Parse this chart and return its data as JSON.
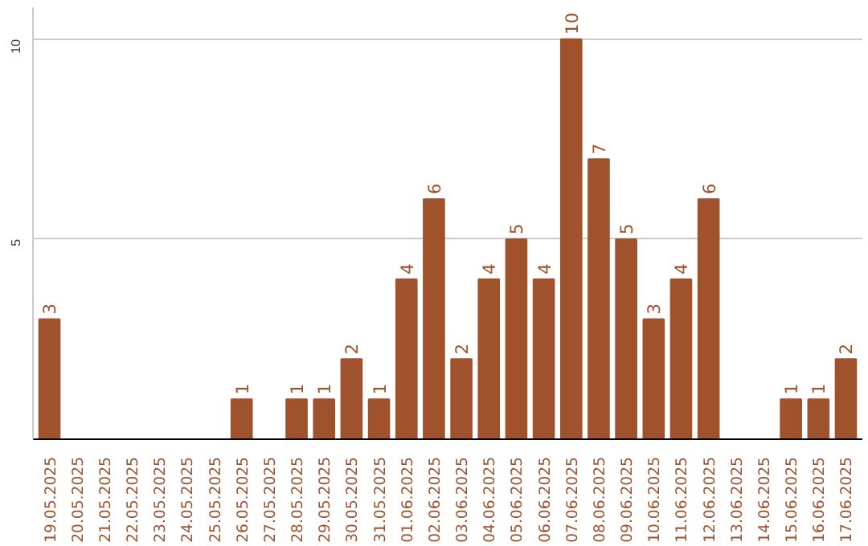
{
  "chart_data": {
    "type": "bar",
    "categories": [
      "19.05.2025",
      "20.05.2025",
      "21.05.2025",
      "22.05.2025",
      "23.05.2025",
      "24.05.2025",
      "25.05.2025",
      "26.05.2025",
      "27.05.2025",
      "28.05.2025",
      "29.05.2025",
      "30.05.2025",
      "31.05.2025",
      "01.06.2025",
      "02.06.2025",
      "03.06.2025",
      "04.06.2025",
      "05.06.2025",
      "06.06.2025",
      "07.06.2025",
      "08.06.2025",
      "09.06.2025",
      "10.06.2025",
      "11.06.2025",
      "12.06.2025",
      "13.06.2025",
      "14.06.2025",
      "15.06.2025",
      "16.06.2025",
      "17.06.2025"
    ],
    "values": [
      3,
      0,
      0,
      0,
      0,
      0,
      0,
      1,
      0,
      1,
      1,
      2,
      1,
      4,
      6,
      2,
      4,
      5,
      4,
      10,
      7,
      5,
      3,
      4,
      6,
      0,
      0,
      1,
      1,
      2
    ],
    "value_labels": [
      "3",
      null,
      null,
      null,
      null,
      null,
      null,
      "1",
      null,
      "1",
      "1",
      "2",
      "1",
      "4",
      "6",
      "2",
      "4",
      "5",
      "4",
      "10",
      "7",
      "5",
      "3",
      "4",
      "6",
      null,
      null,
      "1",
      "1",
      "2"
    ],
    "color": "#a0522d",
    "ylim": [
      0,
      10.8
    ],
    "yticks": [
      5,
      10
    ],
    "grid": "y"
  }
}
